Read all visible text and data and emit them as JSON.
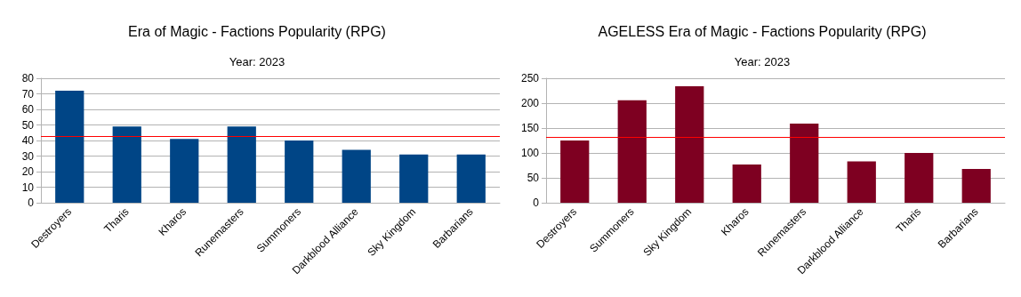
{
  "chart_data": [
    {
      "type": "bar",
      "title": "Era of Magic - Factions Popularity (RPG)",
      "subtitle": "Year: 2023",
      "categories": [
        "Destroyers",
        "Tharis",
        "Kharos",
        "Runemasters",
        "Summoners",
        "Darkblood Alliance",
        "Sky Kingdom",
        "Barbarians"
      ],
      "values": [
        72,
        49,
        41,
        49,
        40,
        34,
        31,
        31
      ],
      "color": "#004586",
      "ylim": [
        0,
        80
      ],
      "yticks": [
        0,
        10,
        20,
        30,
        40,
        50,
        60,
        70,
        80
      ],
      "grid": "y",
      "ref_lines": [
        {
          "axis": "y",
          "value": 43,
          "color": "#ff0000"
        }
      ]
    },
    {
      "type": "bar",
      "title": "AGELESS Era of Magic - Factions Popularity (RPG)",
      "subtitle": "Year: 2023",
      "categories": [
        "Destroyers",
        "Summoners",
        "Sky Kingdom",
        "Kharos",
        "Runemasters",
        "Darkblood Alliance",
        "Tharis",
        "Barbarians"
      ],
      "values": [
        125,
        206,
        234,
        77,
        159,
        83,
        100,
        68
      ],
      "color": "#7e0021",
      "ylim": [
        0,
        250
      ],
      "yticks": [
        0,
        50,
        100,
        150,
        200,
        250
      ],
      "grid": "y",
      "ref_lines": [
        {
          "axis": "y",
          "value": 131,
          "color": "#ff0000"
        }
      ]
    }
  ]
}
